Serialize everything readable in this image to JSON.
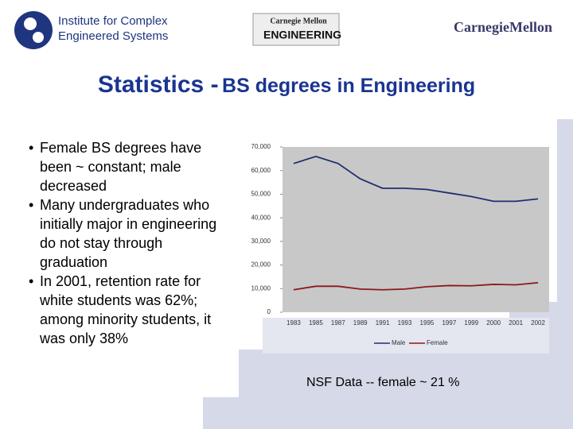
{
  "header": {
    "ices_line1": "Institute for Complex",
    "ices_line2": "Engineered Systems",
    "cmu_eng_top": "Carnegie Mellon",
    "cmu_eng_bottom": "ENGINEERING",
    "cmu": "CarnegieMellon"
  },
  "title": {
    "main": "Statistics -",
    "rest": "BS degrees in Engineering"
  },
  "bullets": [
    "Female BS degrees have been ~ constant; male decreased",
    "Many undergraduates who initially major in engineering do not stay through graduation",
    "In 2001, retention rate for white students was 62%; among minority students, it was only 38%"
  ],
  "chart_data": {
    "type": "line",
    "categories": [
      "1983",
      "1985",
      "1987",
      "1989",
      "1991",
      "1993",
      "1995",
      "1997",
      "1999",
      "2000",
      "2001",
      "2002"
    ],
    "series": [
      {
        "name": "Male",
        "color": "#1f2f6e",
        "values": [
          63000,
          66000,
          63000,
          56500,
          52500,
          52500,
          52000,
          50500,
          49000,
          47000,
          47000,
          48000
        ]
      },
      {
        "name": "Female",
        "color": "#8b1a1a",
        "values": [
          9500,
          11000,
          11000,
          9800,
          9500,
          9800,
          10800,
          11300,
          11200,
          11800,
          11600,
          12500
        ]
      }
    ],
    "ylim": [
      0,
      70000
    ],
    "yticks": [
      0,
      {
        "value": 10000,
        "label": "10,000"
      },
      {
        "value": 20000,
        "label": "20,000"
      },
      {
        "value": 30000,
        "label": "30,000"
      },
      {
        "value": 40000,
        "label": "40,000"
      },
      {
        "value": 50000,
        "label": "50,000"
      },
      {
        "value": 60000,
        "label": "60,000"
      },
      {
        "value": 70000,
        "label": "70,000"
      }
    ],
    "grid": false
  },
  "footnote": "NSF Data  -- female ~  21 %"
}
